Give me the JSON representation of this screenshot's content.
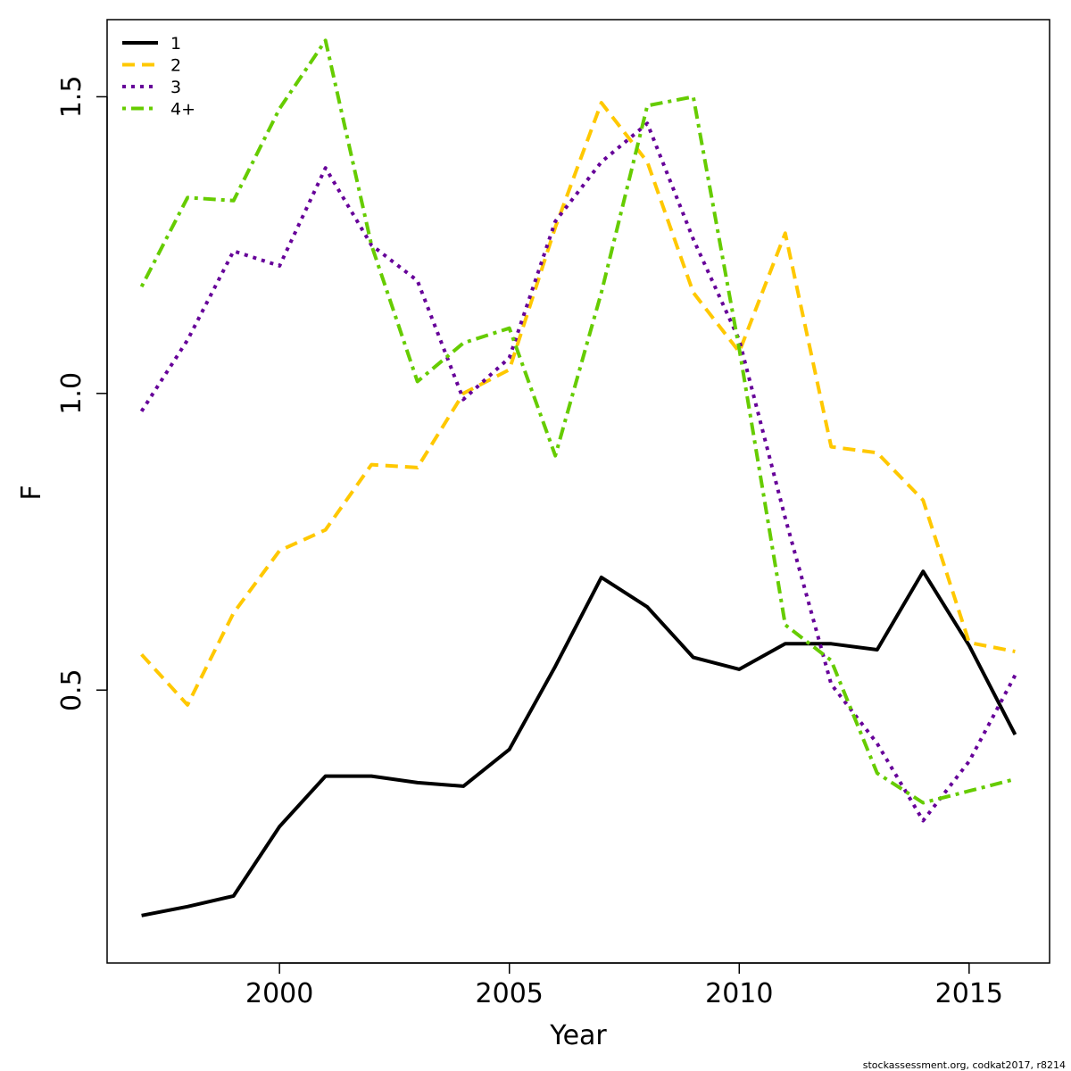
{
  "chart_data": {
    "type": "line",
    "title": "",
    "xlabel": "Year",
    "ylabel": "F",
    "xlim": [
      1996.25,
      2016.75
    ],
    "ylim": [
      0.04,
      1.63
    ],
    "x_ticks": [
      2000,
      2005,
      2010,
      2015
    ],
    "y_ticks": [
      0.5,
      1.0,
      1.5
    ],
    "x_tick_labels": [
      "2000",
      "2005",
      "2010",
      "2015"
    ],
    "y_tick_labels": [
      "0.5",
      "1.0",
      "1.5"
    ],
    "grid": false,
    "legend_position": "top-left",
    "x": [
      1997,
      1998,
      1999,
      2000,
      2001,
      2002,
      2003,
      2004,
      2005,
      2006,
      2007,
      2008,
      2009,
      2010,
      2011,
      2012,
      2013,
      2014,
      2015,
      2016
    ],
    "series": [
      {
        "name": "1",
        "color": "#000000",
        "dash": "solid",
        "values": [
          0.12,
          0.135,
          0.153,
          0.27,
          0.355,
          0.355,
          0.344,
          0.338,
          0.4,
          0.54,
          0.69,
          0.64,
          0.555,
          0.535,
          0.578,
          0.578,
          0.568,
          0.7,
          0.575,
          0.425
        ]
      },
      {
        "name": "2",
        "color": "#FFC800",
        "dash": "dashed",
        "values": [
          0.56,
          0.475,
          0.63,
          0.735,
          0.77,
          0.88,
          0.875,
          1.0,
          1.04,
          1.28,
          1.49,
          1.39,
          1.17,
          1.07,
          1.27,
          0.91,
          0.9,
          0.82,
          0.58,
          0.565
        ]
      },
      {
        "name": "3",
        "color": "#660099",
        "dash": "dotted",
        "values": [
          0.97,
          1.09,
          1.24,
          1.215,
          1.38,
          1.25,
          1.19,
          0.99,
          1.06,
          1.29,
          1.39,
          1.455,
          1.26,
          1.09,
          0.79,
          0.51,
          0.41,
          0.28,
          0.38,
          0.525
        ]
      },
      {
        "name": "4+",
        "color": "#66CC00",
        "dash": "dashdot",
        "values": [
          1.18,
          1.33,
          1.325,
          1.48,
          1.595,
          1.25,
          1.02,
          1.085,
          1.11,
          0.895,
          1.17,
          1.485,
          1.5,
          1.075,
          0.61,
          0.55,
          0.36,
          0.31,
          0.33,
          0.35
        ]
      }
    ]
  },
  "footnote": "stockassessment.org, codkat2017, r8214"
}
